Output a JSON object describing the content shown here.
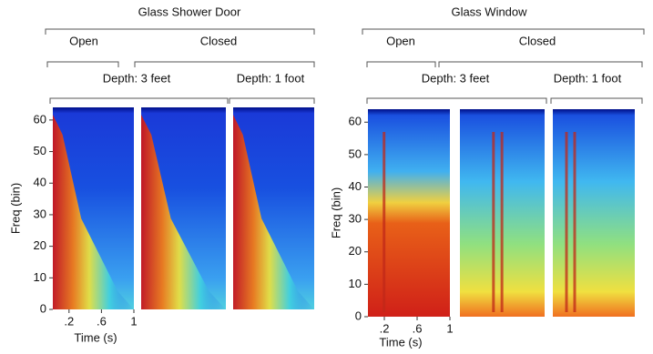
{
  "panels": [
    {
      "title": "Glass Shower Door",
      "groups": [
        "Open",
        "Closed"
      ],
      "depths": [
        "Depth: 3 feet",
        "Depth: 1 foot"
      ],
      "y_label": "Freq (bin)",
      "x_label": "Time (s)",
      "ylim": [
        0,
        64
      ],
      "yticks": [
        0,
        10,
        20,
        30,
        40,
        50,
        60
      ],
      "xlim": [
        0,
        1
      ],
      "xticks": [
        {
          "value": 0.2,
          "label": ".2"
        },
        {
          "value": 0.6,
          "label": ".6"
        },
        1
      ]
    },
    {
      "title": "Glass Window",
      "groups": [
        "Open",
        "Closed"
      ],
      "depths": [
        "Depth: 3 feet",
        "Depth: 1 foot"
      ],
      "y_label": "Freq (bin)",
      "x_label": "Time (s)",
      "ylim": [
        0,
        64
      ],
      "yticks": [
        0,
        10,
        20,
        30,
        40,
        50,
        60
      ],
      "xlim": [
        0,
        1
      ],
      "xticks": [
        {
          "value": 0.2,
          "label": ".2"
        },
        {
          "value": 0.6,
          "label": ".6"
        },
        1
      ]
    }
  ]
}
